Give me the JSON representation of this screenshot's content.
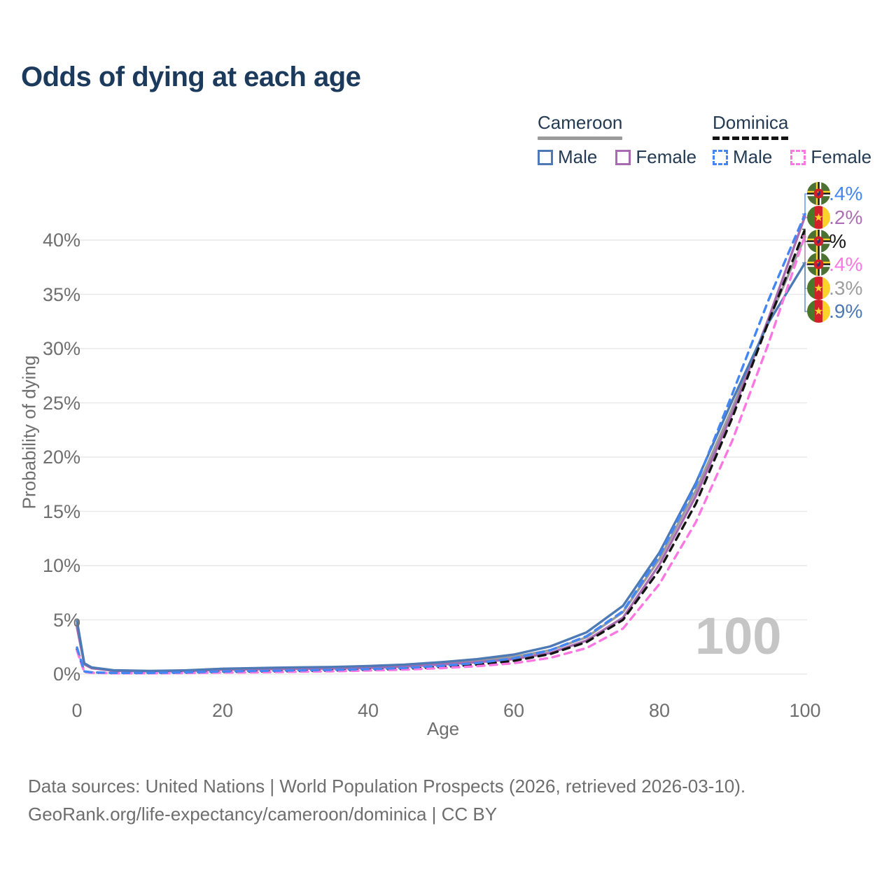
{
  "title": "Odds of dying at each age",
  "watermark": "100",
  "colors": {
    "title": "#1c3a5c",
    "legend_text": "#243b53",
    "axis_text": "#6f6f6f",
    "grid": "#e9e9e9",
    "watermark": "#c5c5c5",
    "footer": "#6e6e6e",
    "cameroon_male": "#4d79b5",
    "cameroon_female": "#a86ab0",
    "cameroon_both": "#9b9b9b",
    "dominica_male": "#4486f4",
    "dominica_female": "#fc77e2",
    "dominica_both": "#141414"
  },
  "legend": {
    "groups": [
      {
        "key": "cameroon",
        "label": "Cameroon",
        "line_style": "solid",
        "line_color": "#9b9b9b",
        "items": [
          {
            "key": "cameroon_male",
            "label": "Male",
            "color": "#4d79b5",
            "style": "solid",
            "checked": false
          },
          {
            "key": "cameroon_female",
            "label": "Female",
            "color": "#a86ab0",
            "style": "solid",
            "checked": false
          }
        ]
      },
      {
        "key": "dominica",
        "label": "Dominica",
        "line_style": "dashed",
        "line_color": "#141414",
        "items": [
          {
            "key": "dominica_male",
            "label": "Male",
            "color": "#4486f4",
            "style": "dashed",
            "checked": false
          },
          {
            "key": "dominica_female",
            "label": "Female",
            "color": "#fc77e2",
            "style": "dashed",
            "checked": false
          }
        ]
      }
    ]
  },
  "chart_data": {
    "type": "line",
    "title": "Odds of dying at each age",
    "xlabel": "Age",
    "ylabel": "Probability of dying",
    "xlim": [
      0,
      100
    ],
    "ylim": [
      0,
      44
    ],
    "grid": "horizontal",
    "legend_position": "top-right",
    "x_ticks": [
      {
        "value": 0,
        "label": "0"
      },
      {
        "value": 20,
        "label": "20"
      },
      {
        "value": 40,
        "label": "40"
      },
      {
        "value": 60,
        "label": "60"
      },
      {
        "value": 80,
        "label": "80"
      },
      {
        "value": 100,
        "label": "100"
      }
    ],
    "y_ticks": [
      {
        "value": 0,
        "label": "0%"
      },
      {
        "value": 5,
        "label": "5%"
      },
      {
        "value": 10,
        "label": "10%"
      },
      {
        "value": 15,
        "label": "15%"
      },
      {
        "value": 20,
        "label": "20%"
      },
      {
        "value": 25,
        "label": "25%"
      },
      {
        "value": 30,
        "label": "30%"
      },
      {
        "value": 35,
        "label": "35%"
      },
      {
        "value": 40,
        "label": "40%"
      }
    ],
    "ages": [
      0,
      1,
      2,
      5,
      10,
      15,
      20,
      25,
      30,
      35,
      40,
      45,
      50,
      55,
      60,
      65,
      70,
      75,
      80,
      85,
      90,
      95,
      100
    ],
    "series": [
      {
        "key": "cameroon_both",
        "name": "Cameroon",
        "country": "Cameroon",
        "sex": "Both",
        "color": "#9b9b9b",
        "dash": false,
        "values": [
          4.6,
          0.95,
          0.58,
          0.33,
          0.27,
          0.31,
          0.45,
          0.5,
          0.55,
          0.58,
          0.65,
          0.78,
          0.99,
          1.24,
          1.58,
          2.2,
          3.4,
          5.7,
          10.6,
          16.9,
          24.5,
          32.6,
          40.3
        ]
      },
      {
        "key": "cameroon_female",
        "name": "Cameroon Female",
        "country": "Cameroon",
        "sex": "Female",
        "color": "#a86ab0",
        "dash": false,
        "values": [
          4.3,
          0.9,
          0.55,
          0.31,
          0.25,
          0.28,
          0.4,
          0.44,
          0.48,
          0.51,
          0.57,
          0.69,
          0.88,
          1.1,
          1.38,
          1.95,
          3.1,
          5.2,
          10.1,
          16.4,
          24.0,
          32.8,
          42.2
        ]
      },
      {
        "key": "cameroon_male",
        "name": "Cameroon Male",
        "country": "Cameroon",
        "sex": "Male",
        "color": "#4d79b5",
        "dash": false,
        "values": [
          4.9,
          1.0,
          0.62,
          0.36,
          0.3,
          0.35,
          0.5,
          0.56,
          0.62,
          0.66,
          0.74,
          0.88,
          1.1,
          1.38,
          1.8,
          2.55,
          3.85,
          6.3,
          11.2,
          17.6,
          25.2,
          32.4,
          37.9
        ]
      },
      {
        "key": "dominica_both",
        "name": "Dominica",
        "country": "Dominica",
        "sex": "Both",
        "color": "#141414",
        "dash": true,
        "values": [
          2.3,
          0.22,
          0.14,
          0.09,
          0.09,
          0.13,
          0.19,
          0.23,
          0.27,
          0.32,
          0.39,
          0.48,
          0.65,
          0.87,
          1.22,
          1.85,
          2.95,
          5.0,
          9.6,
          15.7,
          23.6,
          32.5,
          41.0
        ]
      },
      {
        "key": "dominica_female",
        "name": "Dominica Female",
        "country": "Dominica",
        "sex": "Female",
        "color": "#fc77e2",
        "dash": true,
        "values": [
          2.15,
          0.19,
          0.12,
          0.08,
          0.08,
          0.1,
          0.14,
          0.17,
          0.21,
          0.26,
          0.33,
          0.41,
          0.55,
          0.73,
          1.0,
          1.5,
          2.4,
          4.2,
          8.3,
          14.0,
          21.5,
          30.5,
          40.4
        ]
      },
      {
        "key": "dominica_male",
        "name": "Dominica Male",
        "country": "Dominica",
        "sex": "Male",
        "color": "#4486f4",
        "dash": true,
        "values": [
          2.45,
          0.25,
          0.16,
          0.11,
          0.11,
          0.16,
          0.24,
          0.29,
          0.34,
          0.39,
          0.46,
          0.57,
          0.76,
          1.02,
          1.45,
          2.2,
          3.5,
          5.8,
          10.9,
          17.4,
          25.8,
          34.5,
          42.4
        ]
      }
    ],
    "end_labels": [
      {
        "series": "dominica_male",
        "flag": "dominica",
        "text": "42.4%",
        "value": 42.4,
        "color": "#4486f4"
      },
      {
        "series": "cameroon_female",
        "flag": "cameroon",
        "text": "42.2%",
        "value": 42.2,
        "color": "#ad6fb3"
      },
      {
        "series": "dominica_both",
        "flag": "dominica",
        "text": "41%",
        "value": 41.0,
        "color": "#141414"
      },
      {
        "series": "dominica_female",
        "flag": "dominica",
        "text": "40.4%",
        "value": 40.4,
        "color": "#fc77e2"
      },
      {
        "series": "cameroon_both",
        "flag": "cameroon",
        "text": "40.3%",
        "value": 40.3,
        "color": "#9e9e9e"
      },
      {
        "series": "cameroon_male",
        "flag": "cameroon",
        "text": "37.9%",
        "value": 37.9,
        "color": "#4d79b5"
      }
    ]
  },
  "footer": {
    "line1": "Data sources: United Nations | World Population Prospects (2026, retrieved 2026-03-10).",
    "line2": "GeoRank.org/life-expectancy/cameroon/dominica | CC BY"
  }
}
